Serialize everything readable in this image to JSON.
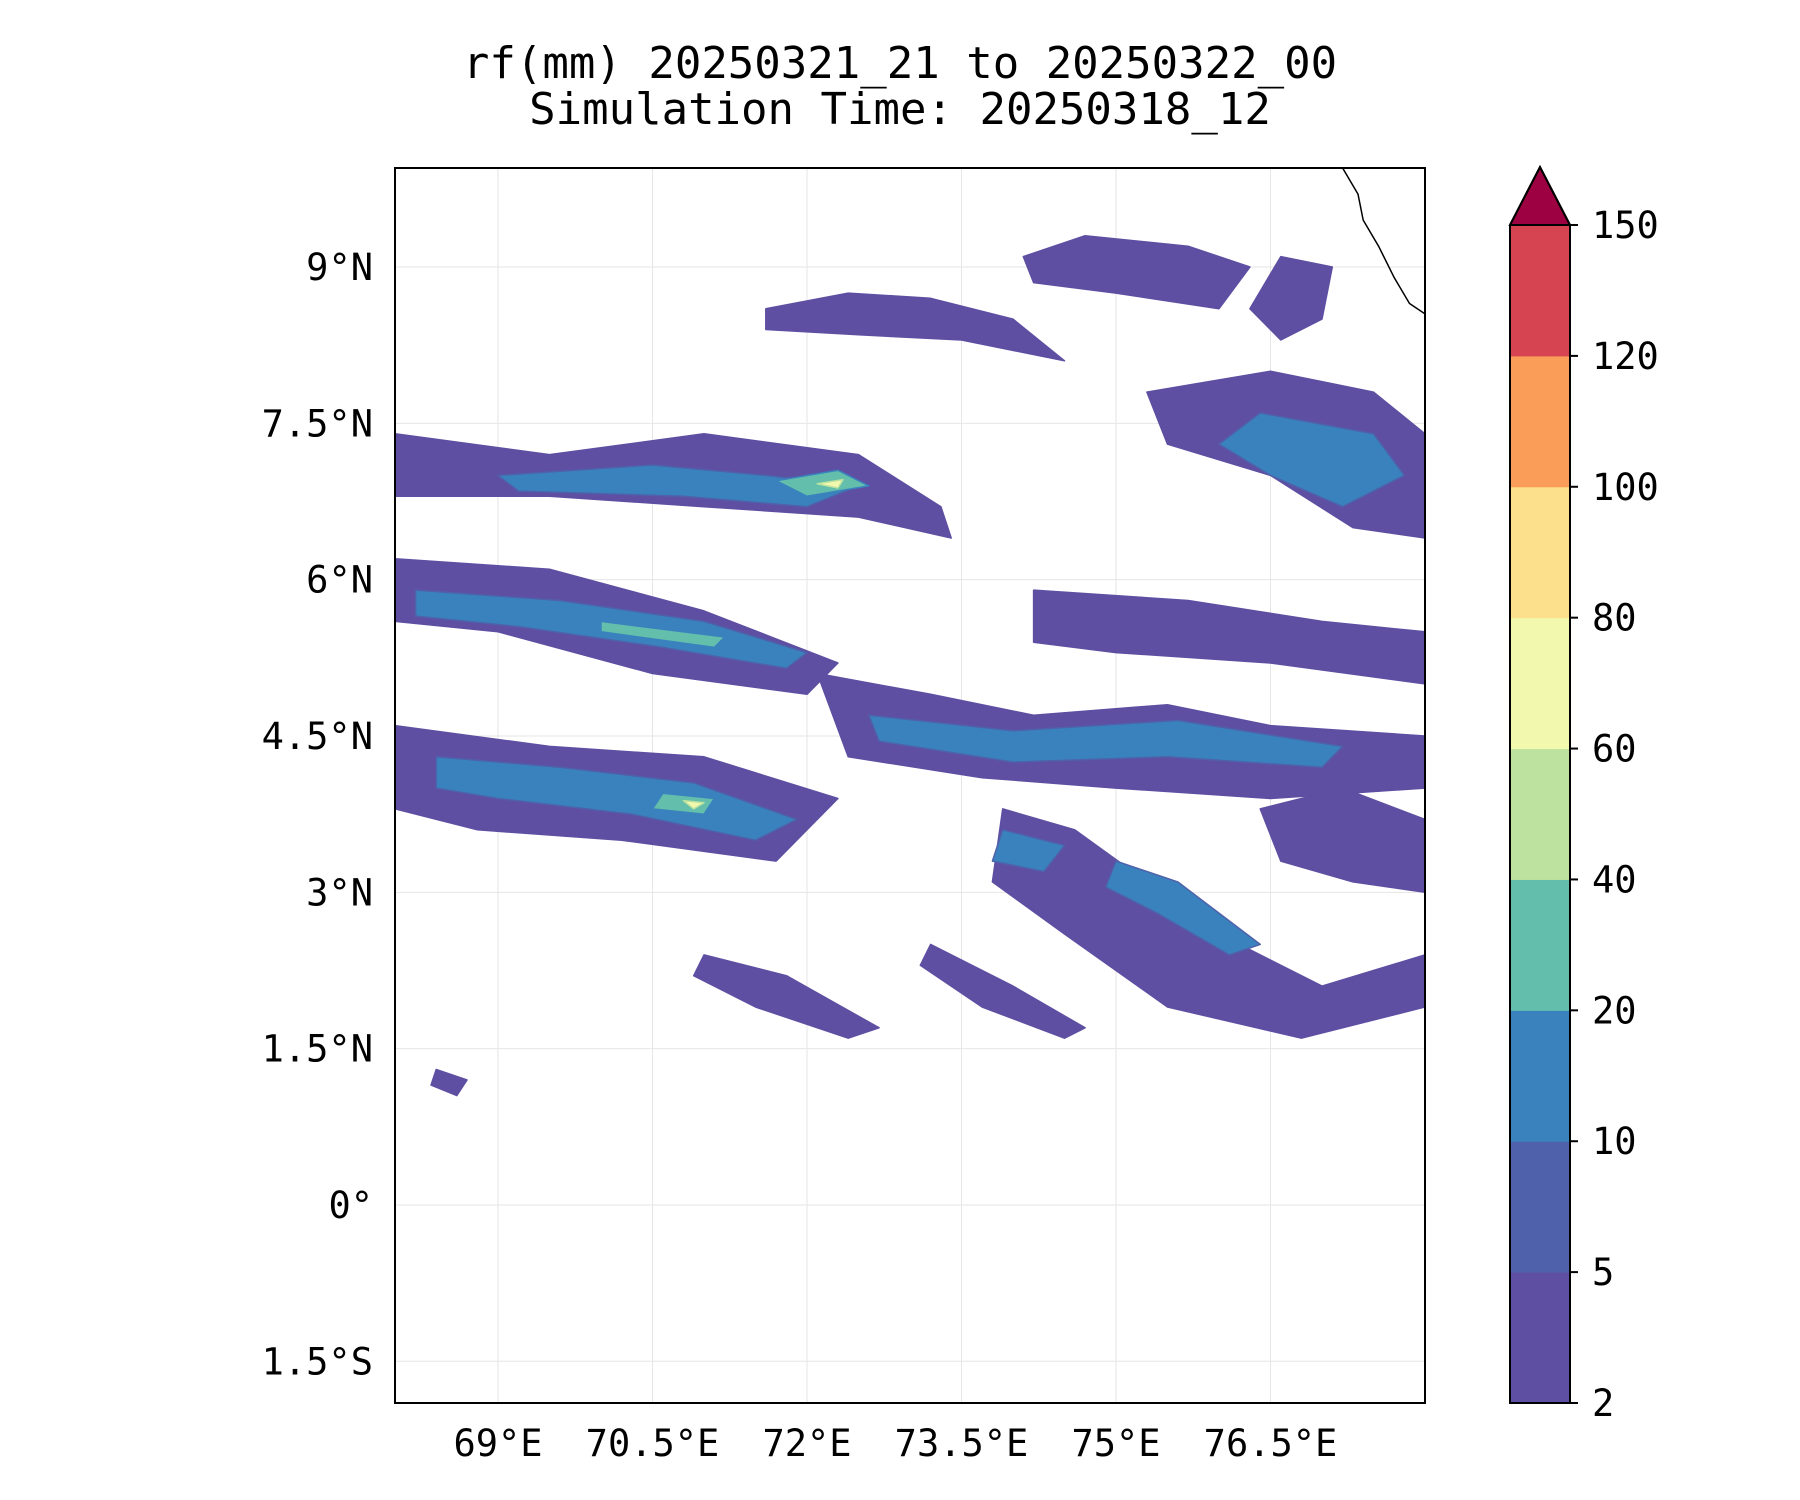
{
  "title": {
    "line1": "rf(mm) 20250321_21 to 20250322_00",
    "line2": "Simulation Time: 20250318_12"
  },
  "map": {
    "lon_range": [
      68.0,
      78.0
    ],
    "lat_range": [
      -1.9,
      9.95
    ],
    "lon_ticks": [
      {
        "value": 69.0,
        "label": "69°E"
      },
      {
        "value": 70.5,
        "label": "70.5°E"
      },
      {
        "value": 72.0,
        "label": "72°E"
      },
      {
        "value": 73.5,
        "label": "73.5°E"
      },
      {
        "value": 75.0,
        "label": "75°E"
      },
      {
        "value": 76.5,
        "label": "76.5°E"
      }
    ],
    "lat_ticks": [
      {
        "value": 9.0,
        "label": "9°N"
      },
      {
        "value": 7.5,
        "label": "7.5°N"
      },
      {
        "value": 6.0,
        "label": "6°N"
      },
      {
        "value": 4.5,
        "label": "4.5°N"
      },
      {
        "value": 3.0,
        "label": "3°N"
      },
      {
        "value": 1.5,
        "label": "1.5°N"
      },
      {
        "value": 0.0,
        "label": "0°"
      },
      {
        "value": -1.5,
        "label": "1.5°S"
      }
    ],
    "gridlines": true,
    "coastline_color": "#000000"
  },
  "colorbar": {
    "levels": [
      "2",
      "5",
      "10",
      "20",
      "40",
      "60",
      "80",
      "100",
      "120",
      "150"
    ],
    "colors": [
      "#5e4fa2",
      "#4e61aa",
      "#3a82bd",
      "#63bfab",
      "#bde2a0",
      "#f2f9ae",
      "#fde08b",
      "#f99d59",
      "#d64351"
    ],
    "extend_color": "#9e0142",
    "extend": "max"
  },
  "rain_bands": [
    {
      "level": 0,
      "points": [
        [
          68.0,
          7.4
        ],
        [
          69.5,
          7.2
        ],
        [
          71.0,
          7.4
        ],
        [
          72.5,
          7.2
        ],
        [
          73.3,
          6.7
        ],
        [
          73.4,
          6.4
        ],
        [
          72.5,
          6.6
        ],
        [
          71.0,
          6.7
        ],
        [
          69.5,
          6.8
        ],
        [
          68.0,
          6.8
        ]
      ]
    },
    {
      "level": 0,
      "points": [
        [
          71.6,
          8.6
        ],
        [
          72.4,
          8.75
        ],
        [
          73.2,
          8.7
        ],
        [
          74.0,
          8.5
        ],
        [
          74.5,
          8.1
        ],
        [
          73.5,
          8.3
        ],
        [
          72.5,
          8.35
        ],
        [
          71.6,
          8.4
        ]
      ]
    },
    {
      "level": 0,
      "points": [
        [
          74.1,
          9.1
        ],
        [
          74.7,
          9.3
        ],
        [
          75.7,
          9.2
        ],
        [
          76.3,
          9.0
        ],
        [
          76.0,
          8.6
        ],
        [
          75.0,
          8.75
        ],
        [
          74.2,
          8.85
        ]
      ]
    },
    {
      "level": 0,
      "points": [
        [
          76.6,
          9.1
        ],
        [
          77.1,
          9.0
        ],
        [
          77.0,
          8.5
        ],
        [
          76.6,
          8.3
        ],
        [
          76.3,
          8.6
        ]
      ]
    },
    {
      "level": 0,
      "points": [
        [
          75.3,
          7.8
        ],
        [
          76.5,
          8.0
        ],
        [
          77.5,
          7.8
        ],
        [
          78.0,
          7.4
        ],
        [
          78.0,
          6.4
        ],
        [
          77.3,
          6.5
        ],
        [
          76.5,
          7.0
        ],
        [
          75.5,
          7.3
        ]
      ]
    },
    {
      "level": 0,
      "points": [
        [
          68.0,
          6.2
        ],
        [
          69.5,
          6.1
        ],
        [
          71.0,
          5.7
        ],
        [
          72.3,
          5.2
        ],
        [
          72.0,
          4.9
        ],
        [
          70.5,
          5.1
        ],
        [
          69.0,
          5.5
        ],
        [
          68.0,
          5.6
        ]
      ]
    },
    {
      "level": 0,
      "points": [
        [
          68.0,
          4.6
        ],
        [
          69.5,
          4.4
        ],
        [
          71.0,
          4.3
        ],
        [
          72.3,
          3.9
        ],
        [
          71.7,
          3.3
        ],
        [
          70.2,
          3.5
        ],
        [
          68.8,
          3.6
        ],
        [
          68.0,
          3.8
        ]
      ]
    },
    {
      "level": 0,
      "points": [
        [
          72.1,
          5.1
        ],
        [
          73.2,
          4.9
        ],
        [
          74.2,
          4.7
        ],
        [
          75.5,
          4.8
        ],
        [
          76.5,
          4.6
        ],
        [
          78.0,
          4.5
        ],
        [
          78.0,
          4.0
        ],
        [
          76.5,
          3.9
        ],
        [
          75.0,
          4.0
        ],
        [
          73.7,
          4.1
        ],
        [
          72.4,
          4.3
        ]
      ]
    },
    {
      "level": 0,
      "points": [
        [
          74.2,
          5.9
        ],
        [
          75.7,
          5.8
        ],
        [
          77.0,
          5.6
        ],
        [
          78.0,
          5.5
        ],
        [
          78.0,
          5.0
        ],
        [
          76.5,
          5.2
        ],
        [
          75.0,
          5.3
        ],
        [
          74.2,
          5.4
        ]
      ]
    },
    {
      "level": 0,
      "points": [
        [
          73.9,
          3.8
        ],
        [
          74.6,
          3.6
        ],
        [
          75.3,
          3.1
        ],
        [
          76.0,
          2.6
        ],
        [
          77.0,
          2.1
        ],
        [
          78.0,
          2.4
        ],
        [
          78.0,
          1.9
        ],
        [
          76.8,
          1.6
        ],
        [
          75.5,
          1.9
        ],
        [
          74.5,
          2.6
        ],
        [
          73.8,
          3.1
        ]
      ]
    },
    {
      "level": 0,
      "points": [
        [
          76.4,
          3.8
        ],
        [
          77.2,
          4.0
        ],
        [
          78.0,
          3.7
        ],
        [
          78.0,
          3.0
        ],
        [
          77.3,
          3.1
        ],
        [
          76.6,
          3.3
        ]
      ]
    },
    {
      "level": 0,
      "points": [
        [
          71.0,
          2.4
        ],
        [
          71.8,
          2.2
        ],
        [
          72.7,
          1.7
        ],
        [
          72.4,
          1.6
        ],
        [
          71.5,
          1.9
        ],
        [
          70.9,
          2.2
        ]
      ]
    },
    {
      "level": 0,
      "points": [
        [
          73.2,
          2.5
        ],
        [
          74.0,
          2.1
        ],
        [
          74.7,
          1.7
        ],
        [
          74.5,
          1.6
        ],
        [
          73.7,
          1.9
        ],
        [
          73.1,
          2.3
        ]
      ]
    },
    {
      "level": 0,
      "points": [
        [
          68.4,
          1.3
        ],
        [
          68.7,
          1.2
        ],
        [
          68.6,
          1.05
        ],
        [
          68.35,
          1.15
        ]
      ]
    },
    {
      "level": 2,
      "points": [
        [
          69.0,
          7.0
        ],
        [
          70.5,
          7.1
        ],
        [
          71.6,
          7.0
        ],
        [
          72.5,
          6.9
        ],
        [
          72.0,
          6.7
        ],
        [
          70.8,
          6.8
        ],
        [
          69.2,
          6.85
        ]
      ]
    },
    {
      "level": 2,
      "points": [
        [
          68.2,
          5.9
        ],
        [
          69.6,
          5.8
        ],
        [
          71.0,
          5.6
        ],
        [
          72.0,
          5.3
        ],
        [
          71.8,
          5.15
        ],
        [
          70.6,
          5.35
        ],
        [
          69.2,
          5.55
        ],
        [
          68.2,
          5.65
        ]
      ]
    },
    {
      "level": 2,
      "points": [
        [
          68.4,
          4.3
        ],
        [
          69.6,
          4.2
        ],
        [
          70.9,
          4.05
        ],
        [
          71.9,
          3.7
        ],
        [
          71.5,
          3.5
        ],
        [
          70.3,
          3.75
        ],
        [
          69.0,
          3.9
        ],
        [
          68.4,
          4.0
        ]
      ]
    },
    {
      "level": 2,
      "points": [
        [
          72.6,
          4.7
        ],
        [
          74.0,
          4.55
        ],
        [
          75.6,
          4.65
        ],
        [
          77.2,
          4.4
        ],
        [
          77.0,
          4.2
        ],
        [
          75.5,
          4.3
        ],
        [
          74.0,
          4.25
        ],
        [
          72.7,
          4.45
        ]
      ]
    },
    {
      "level": 2,
      "points": [
        [
          76.4,
          7.6
        ],
        [
          77.5,
          7.4
        ],
        [
          77.8,
          7.0
        ],
        [
          77.2,
          6.7
        ],
        [
          76.5,
          7.0
        ],
        [
          76.0,
          7.3
        ]
      ]
    },
    {
      "level": 2,
      "points": [
        [
          73.9,
          3.6
        ],
        [
          74.5,
          3.45
        ],
        [
          74.3,
          3.2
        ],
        [
          73.8,
          3.3
        ]
      ]
    },
    {
      "level": 2,
      "points": [
        [
          75.0,
          3.3
        ],
        [
          75.6,
          3.1
        ],
        [
          76.4,
          2.5
        ],
        [
          76.1,
          2.4
        ],
        [
          75.4,
          2.8
        ],
        [
          74.9,
          3.05
        ]
      ]
    },
    {
      "level": 3,
      "points": [
        [
          71.7,
          6.95
        ],
        [
          72.3,
          7.05
        ],
        [
          72.6,
          6.9
        ],
        [
          72.0,
          6.8
        ]
      ]
    },
    {
      "level": 3,
      "points": [
        [
          70.0,
          5.6
        ],
        [
          71.2,
          5.45
        ],
        [
          71.1,
          5.35
        ],
        [
          70.0,
          5.5
        ]
      ]
    },
    {
      "level": 3,
      "points": [
        [
          70.6,
          3.95
        ],
        [
          71.1,
          3.9
        ],
        [
          71.0,
          3.75
        ],
        [
          70.5,
          3.8
        ]
      ]
    },
    {
      "level": 5,
      "points": [
        [
          70.8,
          3.88
        ],
        [
          71.0,
          3.86
        ],
        [
          70.9,
          3.8
        ]
      ]
    },
    {
      "level": 5,
      "points": [
        [
          72.1,
          6.92
        ],
        [
          72.35,
          6.96
        ],
        [
          72.3,
          6.88
        ]
      ]
    }
  ],
  "coastline": [
    [
      77.2,
      9.95
    ],
    [
      77.35,
      9.7
    ],
    [
      77.4,
      9.45
    ],
    [
      77.55,
      9.2
    ],
    [
      77.7,
      8.9
    ],
    [
      77.85,
      8.65
    ],
    [
      78.0,
      8.55
    ]
  ]
}
